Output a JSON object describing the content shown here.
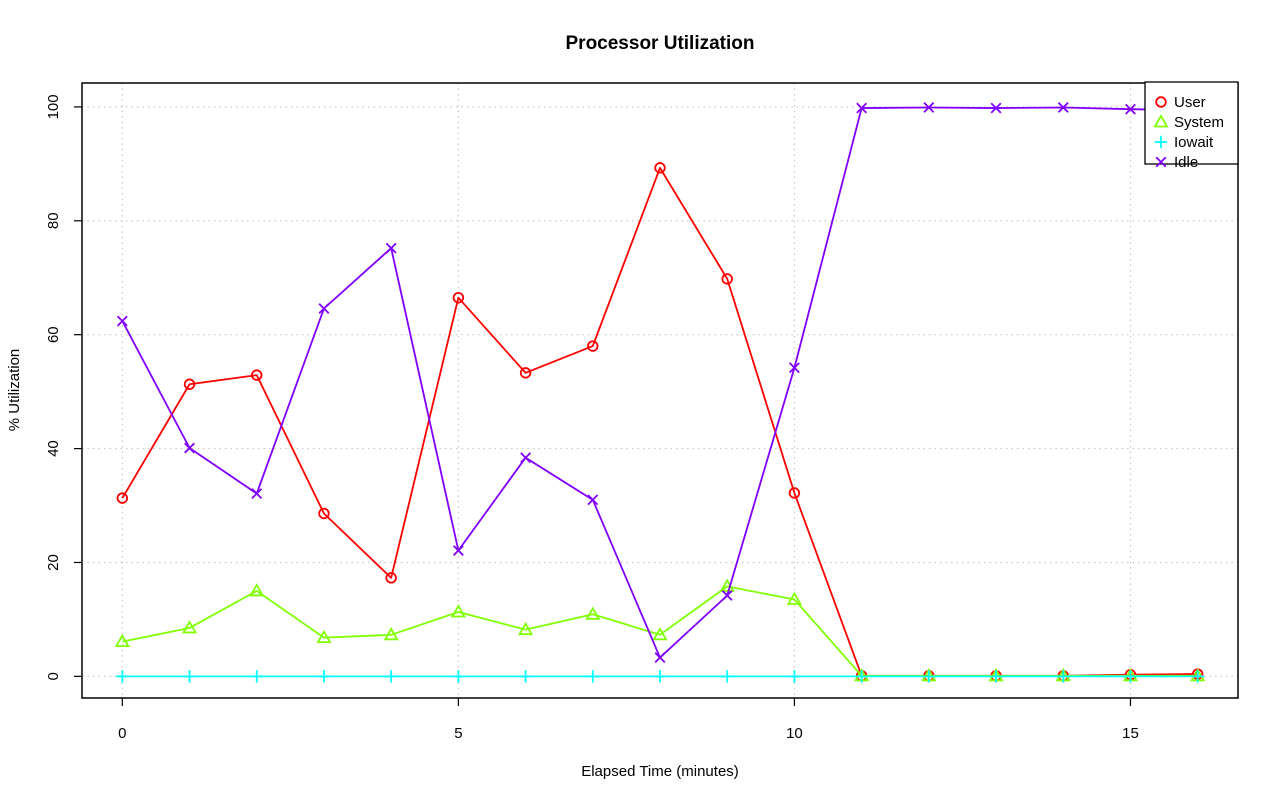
{
  "chart_data": {
    "type": "line",
    "title": "Processor Utilization",
    "xlabel": "Elapsed Time (minutes)",
    "ylabel": "% Utilization",
    "xlim": [
      -0.6,
      16.6
    ],
    "ylim": [
      -3.8,
      104.2
    ],
    "x_ticks": [
      0,
      5,
      10,
      15
    ],
    "y_ticks": [
      0,
      20,
      40,
      60,
      80,
      100
    ],
    "grid": true,
    "legend_position": "top-right",
    "x": [
      0,
      1,
      2,
      3,
      4,
      5,
      6,
      7,
      8,
      9,
      10,
      11,
      12,
      13,
      14,
      15,
      16
    ],
    "series": [
      {
        "name": "User",
        "color": "#ff0000",
        "marker": "circle",
        "values": [
          31.3,
          51.3,
          52.9,
          28.6,
          17.3,
          66.5,
          53.3,
          58.0,
          89.3,
          69.8,
          32.2,
          0.1,
          0.1,
          0.1,
          0.1,
          0.3,
          0.4
        ]
      },
      {
        "name": "System",
        "color": "#80ff00",
        "marker": "triangle",
        "values": [
          6.1,
          8.5,
          15.0,
          6.8,
          7.3,
          11.3,
          8.2,
          10.9,
          7.3,
          15.8,
          13.5,
          0.1,
          0.1,
          0.1,
          0.1,
          0.1,
          0.1
        ]
      },
      {
        "name": "Iowait",
        "color": "#00ffff",
        "marker": "plus",
        "values": [
          0,
          0,
          0,
          0,
          0,
          0,
          0,
          0,
          0,
          0,
          0,
          0,
          0,
          0,
          0,
          0,
          0
        ]
      },
      {
        "name": "Idle",
        "color": "#8000ff",
        "marker": "cross",
        "values": [
          62.4,
          40.1,
          32.1,
          64.6,
          75.2,
          22.1,
          38.4,
          31.0,
          3.3,
          14.2,
          54.2,
          99.8,
          99.9,
          99.8,
          99.9,
          99.6,
          99.4
        ]
      }
    ]
  }
}
